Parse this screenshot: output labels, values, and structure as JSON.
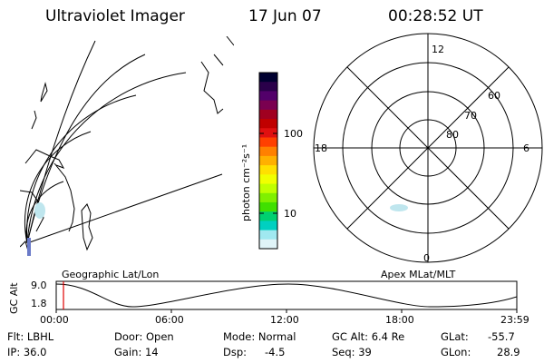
{
  "header": {
    "instrument": "Ultraviolet Imager",
    "date": "17 Jun 07",
    "time": "00:28:52 UT"
  },
  "colorbar": {
    "label": "photon cm⁻²s⁻¹",
    "ticks": [
      "100",
      "10"
    ],
    "colors": [
      "#000030",
      "#2a004a",
      "#52006a",
      "#7a0050",
      "#a00020",
      "#c00000",
      "#e01010",
      "#ff4000",
      "#ff8000",
      "#ffb000",
      "#ffe000",
      "#f0ff00",
      "#c0ff00",
      "#80f000",
      "#40e000",
      "#00d070",
      "#00d0c0",
      "#a0e8f0",
      "#e0f4f8"
    ]
  },
  "polar": {
    "mlt_labels": {
      "top": "12",
      "left": "18",
      "right": "6",
      "bottom": "0"
    },
    "lat_labels": [
      "60",
      "70",
      "80"
    ]
  },
  "map_labels": {
    "left": "Geographic Lat/Lon",
    "right": "Apex MLat/MLT"
  },
  "altitude_plot": {
    "ylabel": "GC Alt",
    "yticks": [
      "9.0",
      "1.8"
    ],
    "xticks": [
      "00:00",
      "06:00",
      "12:00",
      "18:00",
      "23:59"
    ]
  },
  "info": {
    "filter": "Flt: LBHL",
    "ip": "IP: 36.0",
    "door": "Door: Open",
    "gain": "Gain: 14",
    "mode": "Mode: Normal",
    "dsp_label": "Dsp:",
    "dsp_value": "-4.5",
    "gc_alt": "GC Alt: 6.4 Re",
    "seq": "Seq: 39",
    "glat_label": "GLat:",
    "glat_value": "-55.7",
    "glon_label": "GLon:",
    "glon_value": "28.9"
  }
}
